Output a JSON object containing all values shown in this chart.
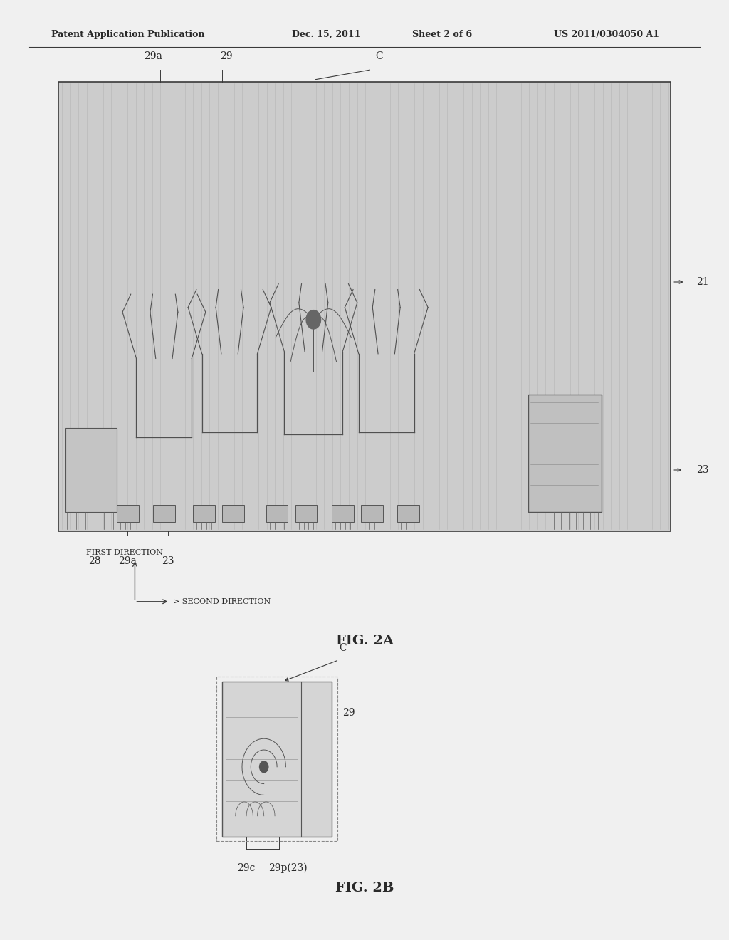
{
  "bg_color": "#f0f0f0",
  "header_text": "Patent Application Publication",
  "header_date": "Dec. 15, 2011",
  "header_sheet": "Sheet 2 of 6",
  "header_patent": "US 2011/0304050 A1",
  "fig2a_label": "FIG. 2A",
  "fig2b_label": "FIG. 2B",
  "text_color": "#2a2a2a",
  "line_color": "#3a3a3a",
  "font_size_header": 9,
  "font_size_fig": 14,
  "font_size_annot": 10,
  "font_size_dir": 8
}
